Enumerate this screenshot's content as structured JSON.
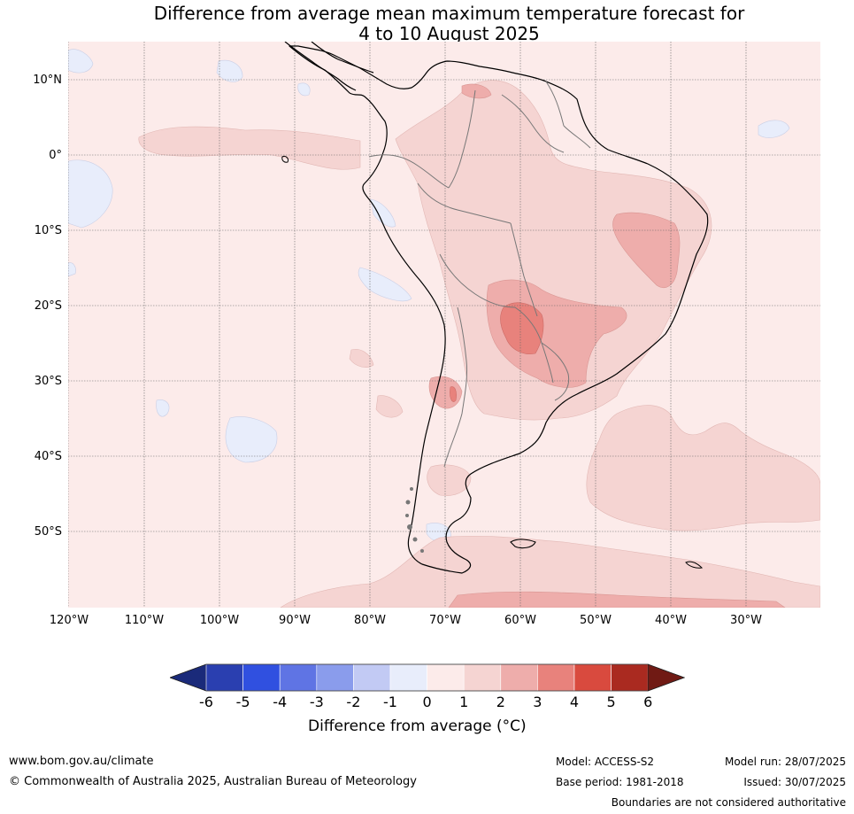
{
  "title_line1": "Difference from average mean maximum temperature forecast for",
  "title_line2": "4 to 10 August 2025",
  "lat_labels": [
    "10°N",
    "0°",
    "10°S",
    "20°S",
    "30°S",
    "40°S",
    "50°S"
  ],
  "lon_labels": [
    "120°W",
    "110°W",
    "100°W",
    "90°W",
    "80°W",
    "70°W",
    "60°W",
    "50°W",
    "40°W",
    "30°W"
  ],
  "colorbar": {
    "label": "Difference from average (°C)",
    "ticks": [
      "-6",
      "-5",
      "-4",
      "-3",
      "-2",
      "-1",
      "0",
      "1",
      "2",
      "3",
      "4",
      "5",
      "6"
    ],
    "colors": [
      "#1a2a7a",
      "#2a3fb0",
      "#3050e0",
      "#5f74e4",
      "#8a9cec",
      "#c2caf4",
      "#e8edfb",
      "#fcebea",
      "#f5d4d2",
      "#eeadab",
      "#e8827c",
      "#d94a3e",
      "#aa2a20",
      "#701a14"
    ]
  },
  "footer": {
    "website": "www.bom.gov.au/climate",
    "copyright": "© Commonwealth of Australia 2025, Australian Bureau of Meteorology",
    "model": "Model: ACCESS-S2",
    "base_period": "Base period: 1981-2018",
    "model_run": "Model run: 28/07/2025",
    "issued": "Issued: 30/07/2025",
    "disclaimer": "Boundaries are not considered authoritative"
  }
}
